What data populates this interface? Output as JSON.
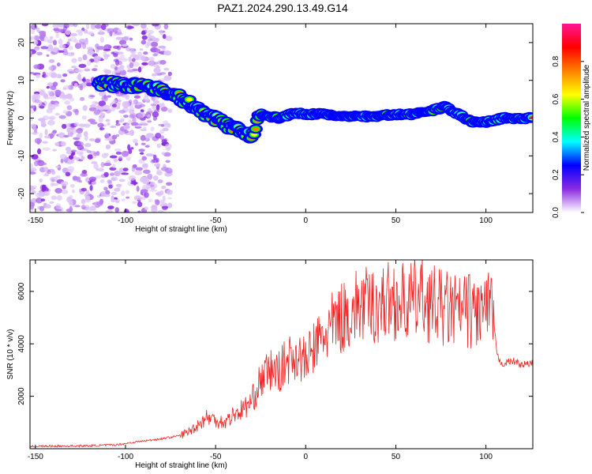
{
  "title": "PAZ1.2024.290.13.49.G14",
  "chart_data": [
    {
      "type": "heatmap",
      "xlabel": "Height of straight line (km)",
      "ylabel": "Frequency (Hz)",
      "xlim": [
        -153,
        126
      ],
      "ylim": [
        -25,
        25
      ],
      "xticks": [
        "-150",
        "-100",
        "-50",
        "0",
        "50",
        "100"
      ],
      "yticks": [
        "20",
        "10",
        "0",
        "-10",
        "-20"
      ],
      "colorbar": {
        "label": "Normalized spectral amplitude",
        "range": [
          0,
          1
        ],
        "ticks": [
          "0.0",
          "0.2",
          "0.4",
          "0.6",
          "0.8"
        ],
        "colors": [
          "#ffffff",
          "#8a2be2",
          "#0000ff",
          "#00ffff",
          "#00ff00",
          "#ffff00",
          "#ff8000",
          "#ff0000",
          "#ff1493"
        ]
      },
      "ridge": {
        "x": [
          -115,
          -105,
          -95,
          -85,
          -75,
          -65,
          -55,
          -45,
          -35,
          -30,
          -25,
          -15,
          -5,
          0,
          10,
          20,
          30,
          40,
          50,
          60,
          70,
          77,
          85,
          92,
          100,
          110,
          120,
          126
        ],
        "y": [
          9,
          9,
          8.5,
          8,
          7,
          4,
          1,
          -1.5,
          -4,
          -5,
          1,
          0,
          1.5,
          1,
          1,
          0.5,
          0.5,
          0.5,
          1,
          1,
          2,
          3,
          1,
          -1,
          -1,
          0,
          0,
          0
        ]
      }
    },
    {
      "type": "line",
      "xlabel": "Height of straight line (km)",
      "ylabel": "SNR (10 * v/v)",
      "xlim": [
        -153,
        126
      ],
      "ylim": [
        0,
        7200
      ],
      "xticks": [
        "-150",
        "-100",
        "-50",
        "0",
        "50",
        "100"
      ],
      "yticks": [
        "6000",
        "4000",
        "2000"
      ],
      "series_color": "#ee2222",
      "envelope": {
        "x": [
          -153,
          -140,
          -120,
          -105,
          -95,
          -80,
          -70,
          -65,
          -60,
          -55,
          -50,
          -45,
          -40,
          -35,
          -30,
          -25,
          -20,
          -15,
          -10,
          -5,
          0,
          5,
          10,
          15,
          20,
          25,
          30,
          35,
          40,
          45,
          50,
          55,
          60,
          65,
          70,
          75,
          80,
          85,
          90,
          95,
          100,
          104,
          106,
          108,
          110,
          115,
          120,
          126
        ],
        "y": [
          90,
          100,
          110,
          150,
          250,
          380,
          500,
          650,
          900,
          1200,
          1100,
          1000,
          1300,
          1500,
          1800,
          2600,
          3000,
          2900,
          3400,
          3600,
          3300,
          3900,
          4300,
          4700,
          5000,
          5200,
          5500,
          5400,
          5500,
          5600,
          5700,
          5500,
          5650,
          5800,
          5500,
          5400,
          5300,
          5200,
          5300,
          5200,
          5300,
          5200,
          3600,
          3300,
          3250,
          3350,
          3200,
          3250
        ]
      }
    }
  ]
}
